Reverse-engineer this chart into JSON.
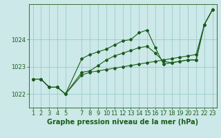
{
  "background_color": "#cce8e8",
  "grid_color": "#99cccc",
  "line_color": "#1a5c1a",
  "title": "Graphe pression niveau de la mer (hPa)",
  "ylim": [
    1021.5,
    1025.3
  ],
  "xlim": [
    0.5,
    23.5
  ],
  "yticks": [
    1022,
    1023,
    1024
  ],
  "xticks": [
    1,
    2,
    3,
    4,
    5,
    7,
    8,
    9,
    10,
    11,
    12,
    13,
    14,
    15,
    16,
    17,
    18,
    19,
    20,
    21,
    22,
    23
  ],
  "series1_x": [
    1,
    2,
    3,
    4,
    5,
    7,
    8,
    9,
    10,
    11,
    12,
    13,
    14,
    15,
    16,
    17,
    18,
    19,
    20,
    21,
    22,
    23
  ],
  "series1_y": [
    1022.55,
    1022.55,
    1022.25,
    1022.25,
    1022.0,
    1022.7,
    1022.8,
    1022.85,
    1022.9,
    1022.95,
    1023.0,
    1023.05,
    1023.1,
    1023.15,
    1023.2,
    1023.25,
    1023.3,
    1023.35,
    1023.4,
    1023.45,
    1024.55,
    1025.1
  ],
  "series2_x": [
    1,
    2,
    3,
    4,
    5,
    7,
    8,
    9,
    10,
    11,
    12,
    13,
    14,
    15,
    16,
    17,
    18,
    19,
    20,
    21,
    22,
    23
  ],
  "series2_y": [
    1022.55,
    1022.55,
    1022.25,
    1022.25,
    1022.0,
    1023.3,
    1023.45,
    1023.55,
    1023.65,
    1023.8,
    1023.95,
    1024.0,
    1024.25,
    1024.35,
    1023.7,
    1023.1,
    1023.15,
    1023.2,
    1023.25,
    1023.25,
    1024.55,
    1025.1
  ],
  "series3_x": [
    1,
    2,
    3,
    4,
    5,
    7,
    8,
    9,
    10,
    11,
    12,
    13,
    14,
    15,
    16,
    17,
    18,
    19,
    20,
    21,
    22,
    23
  ],
  "series3_y": [
    1022.55,
    1022.55,
    1022.25,
    1022.25,
    1022.0,
    1022.8,
    1022.85,
    1023.05,
    1023.25,
    1023.4,
    1023.5,
    1023.6,
    1023.7,
    1023.75,
    1023.5,
    1023.2,
    1023.15,
    1023.2,
    1023.25,
    1023.25,
    1024.55,
    1025.1
  ],
  "title_fontsize": 7,
  "tick_fontsize": 6,
  "markersize": 2.0,
  "linewidth": 0.8
}
